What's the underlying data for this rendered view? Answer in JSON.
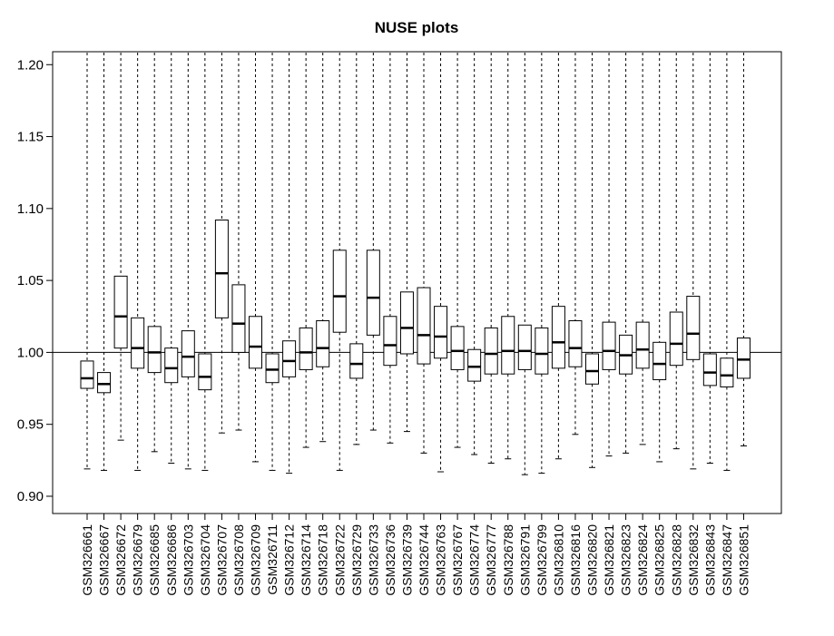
{
  "chart_data": {
    "type": "box",
    "title": "NUSE plots",
    "xlabel": "",
    "ylabel": "",
    "ylim": [
      0.888,
      1.209
    ],
    "yticks": [
      0.9,
      0.95,
      1.0,
      1.05,
      1.1,
      1.15,
      1.2
    ],
    "ytick_labels": [
      "0.90",
      "0.95",
      "1.00",
      "1.05",
      "1.10",
      "1.15",
      "1.20"
    ],
    "reference_line": 1.0,
    "whisker_top": 1.209,
    "grid": false,
    "categories": [
      "GSM326661",
      "GSM326667",
      "GSM326672",
      "GSM326679",
      "GSM326685",
      "GSM326686",
      "GSM326703",
      "GSM326704",
      "GSM326707",
      "GSM326708",
      "GSM326709",
      "GSM326711",
      "GSM326712",
      "GSM326714",
      "GSM326718",
      "GSM326722",
      "GSM326729",
      "GSM326733",
      "GSM326736",
      "GSM326739",
      "GSM326744",
      "GSM326763",
      "GSM326767",
      "GSM326774",
      "GSM326777",
      "GSM326788",
      "GSM326791",
      "GSM326799",
      "GSM326810",
      "GSM326816",
      "GSM326820",
      "GSM326821",
      "GSM326823",
      "GSM326824",
      "GSM326825",
      "GSM326828",
      "GSM326832",
      "GSM326843",
      "GSM326847",
      "GSM326851"
    ],
    "boxes": [
      {
        "min": 0.919,
        "q1": 0.975,
        "median": 0.982,
        "q3": 0.994
      },
      {
        "min": 0.918,
        "q1": 0.972,
        "median": 0.978,
        "q3": 0.986
      },
      {
        "min": 0.939,
        "q1": 1.003,
        "median": 1.025,
        "q3": 1.053
      },
      {
        "min": 0.918,
        "q1": 0.989,
        "median": 1.003,
        "q3": 1.024
      },
      {
        "min": 0.931,
        "q1": 0.986,
        "median": 1.0,
        "q3": 1.018
      },
      {
        "min": 0.923,
        "q1": 0.979,
        "median": 0.989,
        "q3": 1.003
      },
      {
        "min": 0.919,
        "q1": 0.983,
        "median": 0.997,
        "q3": 1.015
      },
      {
        "min": 0.918,
        "q1": 0.974,
        "median": 0.983,
        "q3": 0.999
      },
      {
        "min": 0.944,
        "q1": 1.024,
        "median": 1.055,
        "q3": 1.092
      },
      {
        "min": 0.946,
        "q1": 1.0,
        "median": 1.02,
        "q3": 1.047
      },
      {
        "min": 0.924,
        "q1": 0.989,
        "median": 1.004,
        "q3": 1.025
      },
      {
        "min": 0.918,
        "q1": 0.979,
        "median": 0.988,
        "q3": 0.999
      },
      {
        "min": 0.916,
        "q1": 0.983,
        "median": 0.994,
        "q3": 1.008
      },
      {
        "min": 0.934,
        "q1": 0.988,
        "median": 1.0,
        "q3": 1.017
      },
      {
        "min": 0.938,
        "q1": 0.99,
        "median": 1.003,
        "q3": 1.022
      },
      {
        "min": 0.918,
        "q1": 1.014,
        "median": 1.039,
        "q3": 1.071
      },
      {
        "min": 0.936,
        "q1": 0.982,
        "median": 0.992,
        "q3": 1.006
      },
      {
        "min": 0.946,
        "q1": 1.012,
        "median": 1.038,
        "q3": 1.071
      },
      {
        "min": 0.937,
        "q1": 0.991,
        "median": 1.005,
        "q3": 1.025
      },
      {
        "min": 0.945,
        "q1": 0.999,
        "median": 1.017,
        "q3": 1.042
      },
      {
        "min": 0.93,
        "q1": 0.992,
        "median": 1.012,
        "q3": 1.045
      },
      {
        "min": 0.917,
        "q1": 0.996,
        "median": 1.011,
        "q3": 1.032
      },
      {
        "min": 0.934,
        "q1": 0.988,
        "median": 1.001,
        "q3": 1.018
      },
      {
        "min": 0.929,
        "q1": 0.98,
        "median": 0.99,
        "q3": 1.002
      },
      {
        "min": 0.923,
        "q1": 0.985,
        "median": 0.999,
        "q3": 1.017
      },
      {
        "min": 0.926,
        "q1": 0.985,
        "median": 1.001,
        "q3": 1.025
      },
      {
        "min": 0.915,
        "q1": 0.988,
        "median": 1.001,
        "q3": 1.019
      },
      {
        "min": 0.916,
        "q1": 0.985,
        "median": 0.999,
        "q3": 1.017
      },
      {
        "min": 0.926,
        "q1": 0.989,
        "median": 1.007,
        "q3": 1.032
      },
      {
        "min": 0.943,
        "q1": 0.99,
        "median": 1.003,
        "q3": 1.022
      },
      {
        "min": 0.92,
        "q1": 0.978,
        "median": 0.987,
        "q3": 0.999
      },
      {
        "min": 0.928,
        "q1": 0.988,
        "median": 1.001,
        "q3": 1.021
      },
      {
        "min": 0.93,
        "q1": 0.985,
        "median": 0.998,
        "q3": 1.012
      },
      {
        "min": 0.936,
        "q1": 0.989,
        "median": 1.002,
        "q3": 1.021
      },
      {
        "min": 0.924,
        "q1": 0.981,
        "median": 0.992,
        "q3": 1.007
      },
      {
        "min": 0.933,
        "q1": 0.991,
        "median": 1.006,
        "q3": 1.028
      },
      {
        "min": 0.919,
        "q1": 0.995,
        "median": 1.013,
        "q3": 1.039
      },
      {
        "min": 0.923,
        "q1": 0.977,
        "median": 0.986,
        "q3": 0.999
      },
      {
        "min": 0.918,
        "q1": 0.976,
        "median": 0.984,
        "q3": 0.996
      },
      {
        "min": 0.935,
        "q1": 0.982,
        "median": 0.995,
        "q3": 1.01
      }
    ],
    "colors": {
      "box_fill": "#ffffff",
      "stroke": "#000000",
      "background": "#ffffff"
    }
  }
}
